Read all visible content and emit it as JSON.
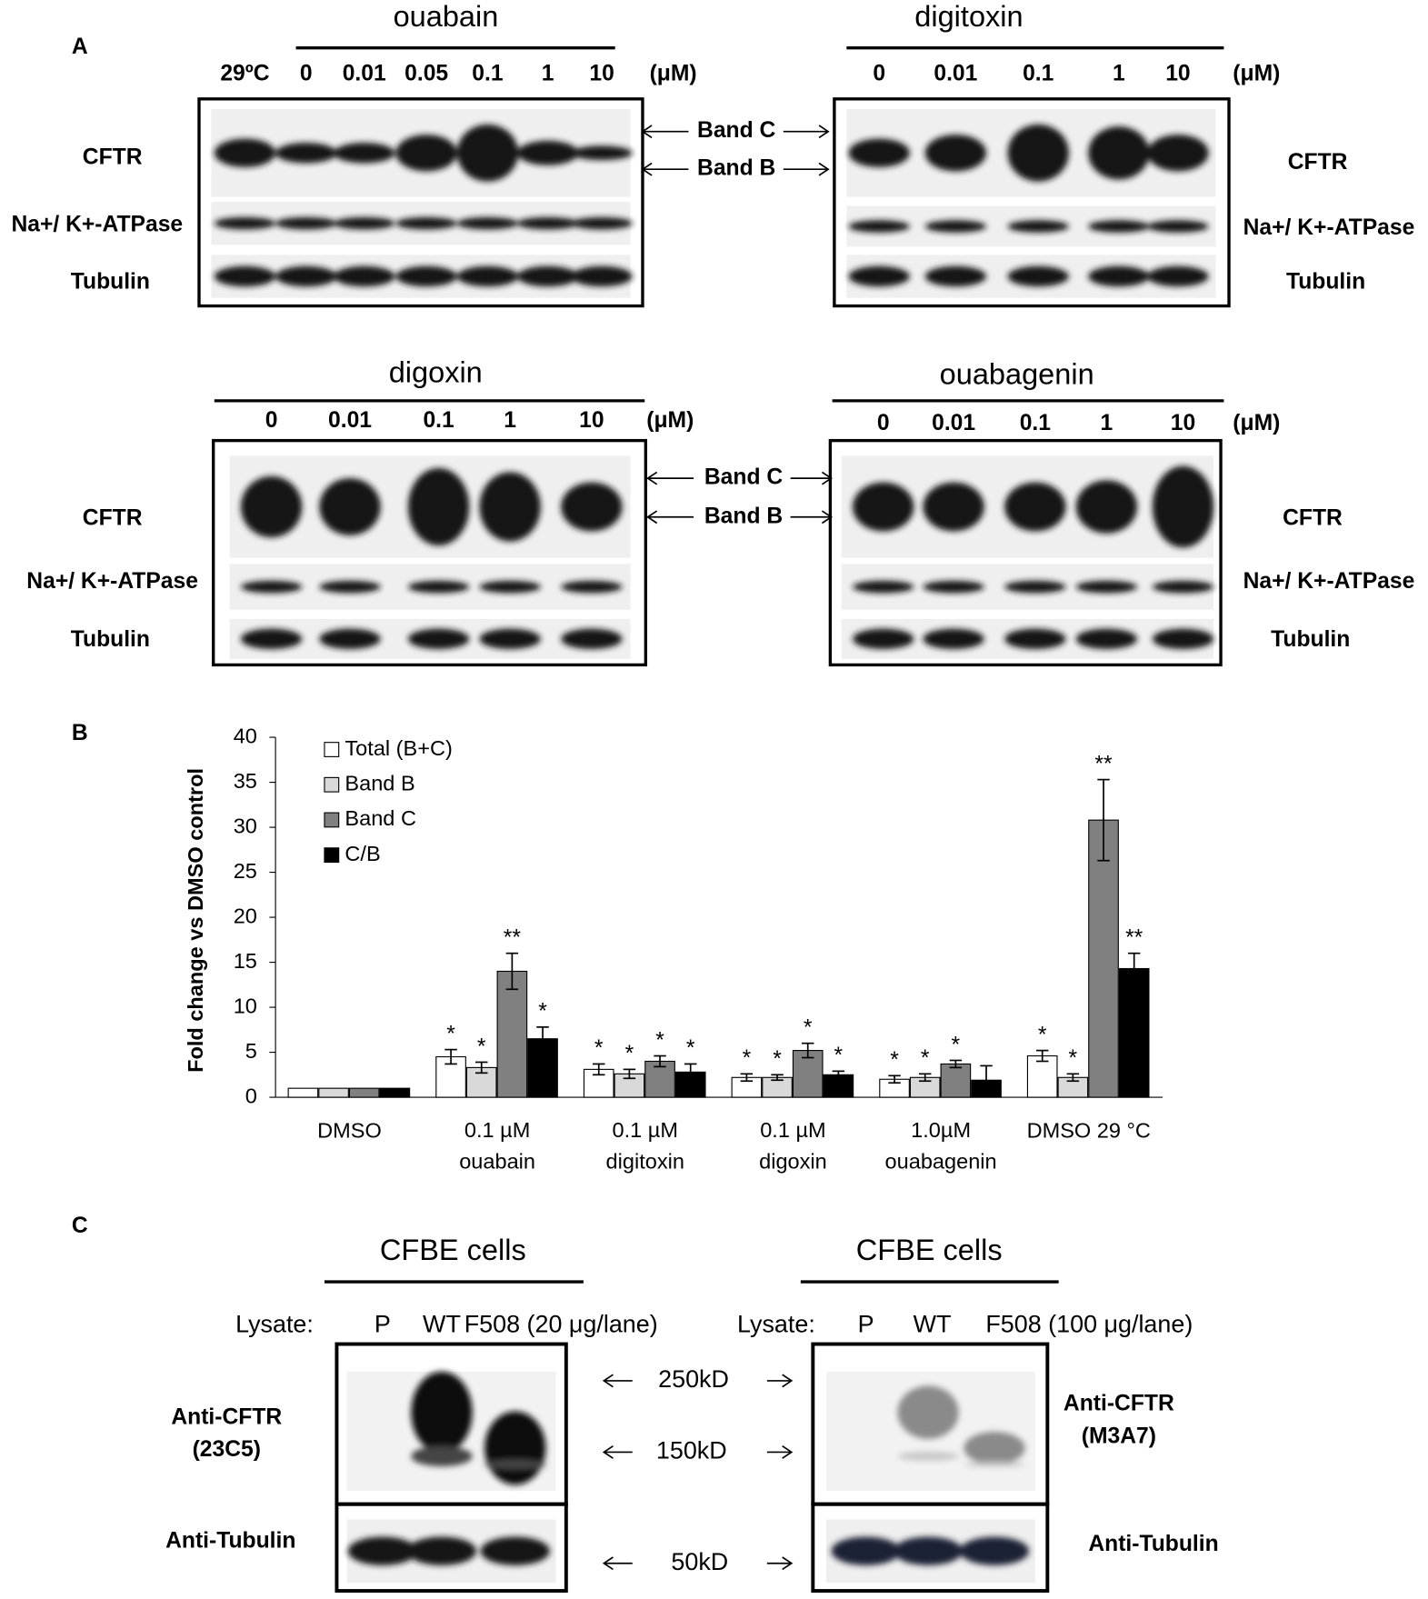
{
  "panel_a": {
    "label": "A",
    "blots": [
      {
        "title": "ouabain",
        "lanes": [
          "29ºC",
          "0",
          "0.01",
          "0.05",
          "0.1",
          "1",
          "10"
        ],
        "unit": "(μM)",
        "rows": [
          "CFTR",
          "Na+/ K+-ATPase",
          "Tubulin"
        ]
      },
      {
        "title": "digitoxin",
        "lanes": [
          "0",
          "0.01",
          "0.1",
          "1",
          "10"
        ],
        "unit": "(μM)",
        "rows": [
          "CFTR",
          "Na+/ K+-ATPase",
          "Tubulin"
        ]
      },
      {
        "title": "digoxin",
        "lanes": [
          "0",
          "0.01",
          "0.1",
          "1",
          "10"
        ],
        "unit": "(μM)",
        "rows": [
          "CFTR",
          "Na+/ K+-ATPase",
          "Tubulin"
        ]
      },
      {
        "title": "ouabagenin",
        "lanes": [
          "0",
          "0.01",
          "0.1",
          "1",
          "10"
        ],
        "unit": "(μM)",
        "rows": [
          "CFTR",
          "Na+/ K+-ATPase",
          "Tubulin"
        ]
      }
    ],
    "band_labels": [
      [
        "Band C",
        "Band B"
      ],
      [
        "Band C",
        "Band B"
      ]
    ]
  },
  "panel_b": {
    "label": "B"
  },
  "chart_data": {
    "type": "bar",
    "y_label": "Fold change vs DMSO control",
    "categories": [
      "DMSO",
      "0.1 µM\nouabain",
      "0.1 µM\ndigitoxin",
      "0.1 µM\ndigoxin",
      "1.0µM\nouabagenin",
      "DMSO 29 °C"
    ],
    "series": [
      {
        "name": "Total (B+C)",
        "color": "#ffffff",
        "values": [
          1.0,
          4.5,
          3.1,
          2.2,
          2.0,
          4.6
        ],
        "errors": [
          0,
          0.8,
          0.6,
          0.4,
          0.4,
          0.6
        ],
        "significance": [
          null,
          "*",
          "*",
          "*",
          "*",
          "*"
        ]
      },
      {
        "name": "Band B",
        "color": "#d9d9d9",
        "values": [
          1.0,
          3.3,
          2.6,
          2.2,
          2.2,
          2.2
        ],
        "errors": [
          0,
          0.6,
          0.5,
          0.3,
          0.4,
          0.4
        ],
        "significance": [
          null,
          "*",
          "*",
          "*",
          "*",
          "*"
        ]
      },
      {
        "name": "Band C",
        "color": "#808080",
        "values": [
          1.0,
          14.0,
          4.0,
          5.2,
          3.7,
          30.8
        ],
        "errors": [
          0,
          2.0,
          0.6,
          0.8,
          0.4,
          4.5
        ],
        "significance": [
          null,
          "**",
          "*",
          "*",
          "*",
          "**"
        ]
      },
      {
        "name": "C/B",
        "color": "#000000",
        "values": [
          1.0,
          6.5,
          2.8,
          2.5,
          1.9,
          14.3
        ],
        "errors": [
          0,
          1.3,
          0.9,
          0.4,
          1.6,
          1.7
        ],
        "significance": [
          null,
          "*",
          "*",
          "*",
          null,
          "**"
        ]
      }
    ],
    "ylim": [
      0,
      40
    ],
    "yticks": [
      0,
      5,
      10,
      15,
      20,
      25,
      30,
      35,
      40
    ],
    "grid": false,
    "legend": "upper left"
  },
  "panel_c": {
    "label": "C",
    "blots": [
      {
        "title": "CFBE cells",
        "lysate_label": "Lysate:",
        "lanes": [
          "P",
          "WT",
          "F508 (20 μg/lane)"
        ],
        "rows": [
          "Anti-CFTR\n(23C5)",
          "Anti-Tubulin"
        ]
      },
      {
        "title": "CFBE cells",
        "lysate_label": "Lysate:",
        "lanes": [
          "P",
          "WT",
          "F508 (100 μg/lane)"
        ],
        "rows": [
          "Anti-CFTR\n(M3A7)",
          "Anti-Tubulin"
        ]
      }
    ],
    "markers": [
      "250kD",
      "150kD",
      "50kD"
    ]
  }
}
